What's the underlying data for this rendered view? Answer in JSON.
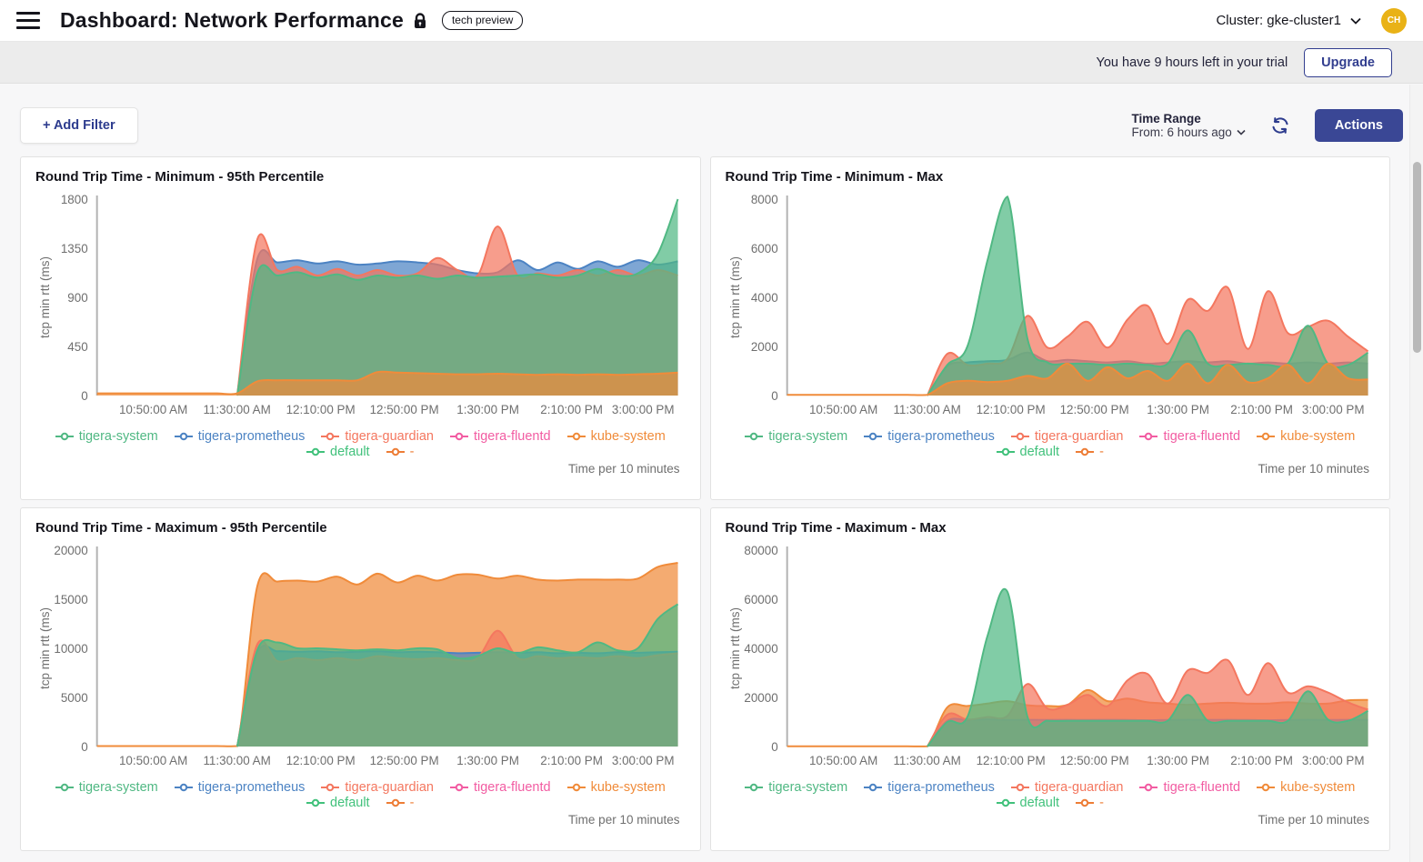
{
  "header": {
    "title": "Dashboard: Network Performance",
    "badge": "tech preview",
    "cluster_label": "Cluster: gke-cluster1",
    "avatar_initials": "CH"
  },
  "trial_bar": {
    "message": "You have 9 hours left in your trial",
    "upgrade_label": "Upgrade"
  },
  "toolbar": {
    "add_filter_label": "+ Add Filter",
    "time_range_title": "Time Range",
    "time_range_value": "From: 6 hours ago",
    "actions_label": "Actions"
  },
  "legend": {
    "items": [
      {
        "label": "tigera-system",
        "color": "#50b883"
      },
      {
        "label": "tigera-prometheus",
        "color": "#4c83c3"
      },
      {
        "label": "tigera-guardian",
        "color": "#f4775f"
      },
      {
        "label": "tigera-fluentd",
        "color": "#f25ca2"
      },
      {
        "label": "kube-system",
        "color": "#f08b3a"
      },
      {
        "label": "default",
        "color": "#41c17b"
      },
      {
        "label": "-",
        "color": "#ed7d36"
      }
    ]
  },
  "footer_note": "Time per 10 minutes",
  "chart_data": [
    {
      "type": "area",
      "title": "Round Trip Time - Minimum - 95th Percentile",
      "ylabel": "tcp min rtt (ms)",
      "ylim": [
        0,
        1800
      ],
      "yticks": [
        0,
        450,
        900,
        1350,
        1800
      ],
      "x_ticks": [
        "10:50:00 AM",
        "11:30:00 AM",
        "12:10:00 PM",
        "12:50:00 PM",
        "1:30:00 PM",
        "2:10:00 PM",
        "3:00:00 PM"
      ],
      "grid": false,
      "legend_position": "bottom",
      "series": [
        {
          "name": "tigera-prometheus",
          "color": "#4c83c3",
          "values": [
            null,
            null,
            null,
            null,
            null,
            null,
            null,
            0,
            1250,
            1220,
            1240,
            1210,
            1230,
            1200,
            1210,
            1230,
            1220,
            1200,
            1150,
            1120,
            1130,
            1240,
            1150,
            1220,
            1160,
            1230,
            1180,
            1240,
            1200,
            1230
          ]
        },
        {
          "name": "tigera-guardian",
          "color": "#f4775f",
          "values": [
            null,
            null,
            null,
            null,
            null,
            null,
            null,
            0,
            1430,
            1150,
            1180,
            1100,
            1160,
            1100,
            1150,
            1100,
            1120,
            1260,
            1150,
            1100,
            1550,
            1100,
            1120,
            1100,
            1150,
            1100,
            1150,
            1100,
            1150,
            1100
          ]
        },
        {
          "name": "tigera-system",
          "color": "#50b883",
          "values": [
            null,
            null,
            null,
            null,
            null,
            null,
            null,
            0,
            1120,
            1100,
            1130,
            1080,
            1110,
            1060,
            1100,
            1080,
            1100,
            1070,
            1100,
            1080,
            1090,
            1100,
            1110,
            1080,
            1100,
            1160,
            1100,
            1120,
            1300,
            1800
          ]
        },
        {
          "name": "kube-system",
          "color": "#f08b3a",
          "values": [
            20,
            20,
            20,
            20,
            20,
            20,
            20,
            20,
            130,
            140,
            140,
            140,
            140,
            140,
            215,
            210,
            205,
            200,
            195,
            195,
            200,
            195,
            190,
            195,
            190,
            195,
            190,
            195,
            200,
            210
          ]
        }
      ]
    },
    {
      "type": "area",
      "title": "Round Trip Time - Minimum - Max",
      "ylabel": "tcp min rtt (ms)",
      "ylim": [
        0,
        8000
      ],
      "yticks": [
        0,
        2000,
        4000,
        6000,
        8000
      ],
      "x_ticks": [
        "10:50:00 AM",
        "11:30:00 AM",
        "12:10:00 PM",
        "12:50:00 PM",
        "1:30:00 PM",
        "2:10:00 PM",
        "3:00:00 PM"
      ],
      "grid": false,
      "legend_position": "bottom",
      "series": [
        {
          "name": "tigera-prometheus",
          "color": "#4c83c3",
          "values": [
            null,
            null,
            null,
            null,
            null,
            null,
            null,
            0,
            1200,
            1350,
            1400,
            1450,
            1750,
            1400,
            1450,
            1400,
            1350,
            1400,
            1300,
            1350,
            1400,
            1350,
            1400,
            1300,
            1350,
            1300,
            1350,
            1300,
            1350,
            1300
          ]
        },
        {
          "name": "tigera-guardian",
          "color": "#f4775f",
          "values": [
            null,
            null,
            null,
            null,
            null,
            null,
            null,
            0,
            1700,
            1250,
            1300,
            1500,
            3250,
            1950,
            2400,
            3000,
            1950,
            3100,
            3650,
            2100,
            3900,
            3450,
            4400,
            1900,
            4250,
            2550,
            2800,
            3050,
            2400,
            1800
          ]
        },
        {
          "name": "tigera-system",
          "color": "#50b883",
          "values": [
            null,
            null,
            null,
            null,
            null,
            null,
            null,
            0,
            1250,
            2000,
            5500,
            8100,
            2300,
            1350,
            1300,
            1300,
            1250,
            1300,
            1250,
            1300,
            2650,
            1300,
            1250,
            1300,
            1250,
            1300,
            2850,
            1300,
            1250,
            1750
          ]
        },
        {
          "name": "kube-system",
          "color": "#f08b3a",
          "values": [
            30,
            30,
            30,
            30,
            30,
            30,
            30,
            30,
            500,
            600,
            550,
            600,
            800,
            700,
            1300,
            600,
            1150,
            700,
            1000,
            600,
            1300,
            500,
            1250,
            550,
            700,
            1250,
            500,
            1300,
            700,
            650
          ]
        }
      ]
    },
    {
      "type": "area",
      "title": "Round Trip Time - Maximum - 95th Percentile",
      "ylabel": "tcp min rtt (ms)",
      "ylim": [
        0,
        20000
      ],
      "yticks": [
        0,
        5000,
        10000,
        15000,
        20000
      ],
      "x_ticks": [
        "10:50:00 AM",
        "11:30:00 AM",
        "12:10:00 PM",
        "12:50:00 PM",
        "1:30:00 PM",
        "2:10:00 PM",
        "3:00:00 PM"
      ],
      "grid": false,
      "legend_position": "bottom",
      "series": [
        {
          "name": "kube-system",
          "color": "#f08b3a",
          "values": [
            50,
            50,
            50,
            50,
            50,
            50,
            50,
            50,
            16300,
            16800,
            16900,
            16800,
            17300,
            16500,
            17600,
            16700,
            17400,
            16900,
            17500,
            17500,
            17100,
            17400,
            17000,
            16900,
            17000,
            17000,
            17000,
            17100,
            18300,
            18700
          ]
        },
        {
          "name": "tigera-prometheus",
          "color": "#4c83c3",
          "values": [
            null,
            null,
            null,
            null,
            null,
            null,
            null,
            0,
            9500,
            9700,
            9650,
            9700,
            9600,
            9650,
            9700,
            9600,
            9650,
            9600,
            9500,
            9550,
            9600,
            9550,
            9600,
            9500,
            9550,
            9500,
            9600,
            9550,
            9600,
            9650
          ]
        },
        {
          "name": "tigera-guardian",
          "color": "#f4775f",
          "values": [
            null,
            null,
            null,
            null,
            null,
            null,
            null,
            0,
            10400,
            8700,
            9000,
            8800,
            9000,
            8800,
            9200,
            9000,
            8900,
            9000,
            8800,
            9000,
            11800,
            9000,
            9200,
            9000,
            9100,
            9000,
            9200,
            9000,
            9300,
            9500
          ]
        },
        {
          "name": "tigera-system",
          "color": "#50b883",
          "values": [
            null,
            null,
            null,
            null,
            null,
            null,
            null,
            0,
            9800,
            10600,
            10000,
            10000,
            9900,
            9800,
            9900,
            9800,
            10000,
            9900,
            9000,
            9200,
            10000,
            9500,
            10100,
            9800,
            9600,
            10600,
            9800,
            10000,
            13000,
            14500
          ]
        }
      ]
    },
    {
      "type": "area",
      "title": "Round Trip Time - Maximum - Max",
      "ylabel": "tcp min rtt (ms)",
      "ylim": [
        0,
        80000
      ],
      "yticks": [
        0,
        20000,
        40000,
        60000,
        80000
      ],
      "x_ticks": [
        "10:50:00 AM",
        "11:30:00 AM",
        "12:10:00 PM",
        "12:50:00 PM",
        "1:30:00 PM",
        "2:10:00 PM",
        "3:00:00 PM"
      ],
      "grid": false,
      "legend_position": "bottom",
      "series": [
        {
          "name": "kube-system",
          "color": "#f08b3a",
          "values": [
            80,
            80,
            80,
            80,
            80,
            80,
            80,
            80,
            16000,
            16500,
            17500,
            18500,
            16800,
            16500,
            17000,
            23000,
            18500,
            19500,
            18000,
            17500,
            17000,
            17500,
            17800,
            17500,
            17500,
            18000,
            17500,
            17500,
            18800,
            19000
          ]
        },
        {
          "name": "tigera-prometheus",
          "color": "#4c83c3",
          "values": [
            null,
            null,
            null,
            null,
            null,
            null,
            null,
            0,
            10500,
            10800,
            11000,
            10800,
            10900,
            10800,
            10900,
            10800,
            10900,
            10800,
            10700,
            10800,
            10900,
            10800,
            10900,
            10800,
            10700,
            10800,
            10900,
            10800,
            10900,
            10800
          ]
        },
        {
          "name": "tigera-guardian",
          "color": "#f4775f",
          "values": [
            null,
            null,
            null,
            null,
            null,
            null,
            null,
            0,
            13000,
            11000,
            12000,
            12500,
            25500,
            15500,
            17000,
            21000,
            16500,
            27000,
            29500,
            17500,
            31000,
            30000,
            35200,
            21000,
            34000,
            22000,
            24500,
            22000,
            18000,
            15000
          ]
        },
        {
          "name": "tigera-system",
          "color": "#50b883",
          "values": [
            null,
            null,
            null,
            null,
            null,
            null,
            null,
            0,
            10000,
            12000,
            45000,
            63000,
            12000,
            10500,
            10500,
            10500,
            10500,
            10500,
            10500,
            10500,
            21000,
            10500,
            10500,
            10500,
            10500,
            10500,
            22500,
            11000,
            10500,
            14500
          ]
        }
      ]
    }
  ]
}
